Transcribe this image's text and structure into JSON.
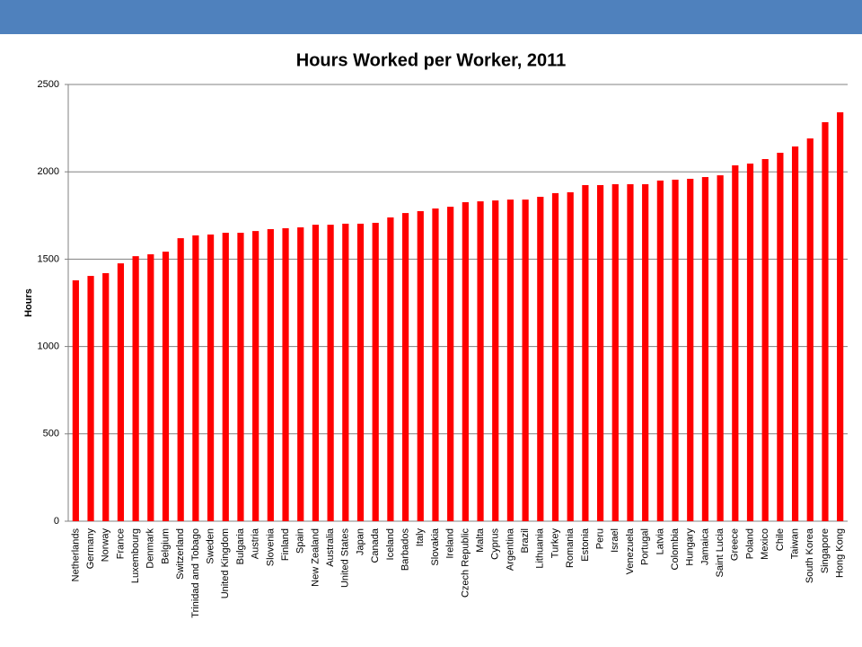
{
  "chart_data": {
    "type": "bar",
    "title": "Hours Worked per Worker, 2011",
    "y_label": "Hours",
    "categories": [
      "Netherlands",
      "Germany",
      "Norway",
      "France",
      "Luxembourg",
      "Denmark",
      "Belgium",
      "Switzerland",
      "Trinidad and Tobago",
      "Sweden",
      "United Kingdom",
      "Bulgaria",
      "Austria",
      "Slovenia",
      "Finland",
      "Spain",
      "New Zealand",
      "Australia",
      "United States",
      "Japan",
      "Canada",
      "Iceland",
      "Barbados",
      "Italy",
      "Slovakia",
      "Ireland",
      "Czech Republic",
      "Malta",
      "Cyprus",
      "Argentina",
      "Brazil",
      "Lithuania",
      "Turkey",
      "Romania",
      "Estonia",
      "Peru",
      "Israel",
      "Venezuela",
      "Portugal",
      "Latvia",
      "Colombia",
      "Hungary",
      "Jamaica",
      "Saint Lucia",
      "Greece",
      "Poland",
      "Mexico",
      "Chile",
      "Taiwan",
      "South Korea",
      "Singapore",
      "Hong Kong"
    ],
    "values": [
      1379,
      1404,
      1420,
      1476,
      1517,
      1528,
      1543,
      1620,
      1636,
      1641,
      1651,
      1651,
      1661,
      1672,
      1677,
      1682,
      1697,
      1697,
      1703,
      1703,
      1708,
      1739,
      1764,
      1775,
      1790,
      1800,
      1826,
      1831,
      1836,
      1841,
      1841,
      1857,
      1878,
      1883,
      1924,
      1924,
      1929,
      1929,
      1929,
      1950,
      1955,
      1960,
      1970,
      1980,
      2037,
      2047,
      2073,
      2109,
      2145,
      2191,
      2284,
      2341
    ],
    "color": "#ff0000",
    "ylim": [
      0,
      2500
    ],
    "yticks": [
      0,
      500,
      1000,
      1500,
      2000,
      2500
    ],
    "grid": true
  }
}
